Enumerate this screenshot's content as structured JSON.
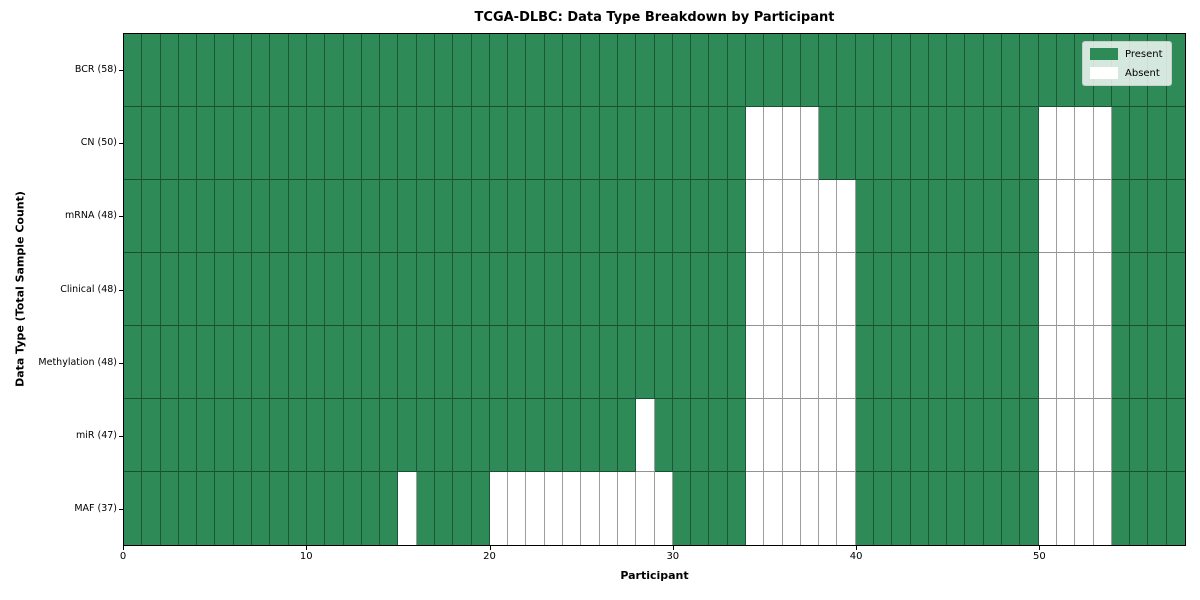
{
  "chart_data": {
    "type": "heatmap",
    "title": "TCGA-DLBC: Data Type Breakdown by Participant",
    "xlabel": "Participant",
    "ylabel": "Data Type (Total Sample Count)",
    "x_ticks": [
      0,
      10,
      20,
      30,
      40,
      50
    ],
    "x_range": [
      0,
      58
    ],
    "n_participants": 58,
    "grid": true,
    "legend_position": "upper-right",
    "legend": [
      {
        "label": "Present",
        "color": "#2e8b57"
      },
      {
        "label": "Absent",
        "color": "#ffffff"
      }
    ],
    "rows": [
      {
        "label": "BCR (58)",
        "data_type": "BCR",
        "total_samples": 58,
        "absent_participants": []
      },
      {
        "label": "CN (50)",
        "data_type": "CN",
        "total_samples": 50,
        "absent_participants": [
          34,
          35,
          36,
          37,
          50,
          51,
          52,
          53
        ]
      },
      {
        "label": "mRNA (48)",
        "data_type": "mRNA",
        "total_samples": 48,
        "absent_participants": [
          34,
          35,
          36,
          37,
          38,
          39,
          50,
          51,
          52,
          53
        ]
      },
      {
        "label": "Clinical (48)",
        "data_type": "Clinical",
        "total_samples": 48,
        "absent_participants": [
          34,
          35,
          36,
          37,
          38,
          39,
          50,
          51,
          52,
          53
        ]
      },
      {
        "label": "Methylation (48)",
        "data_type": "Methylation",
        "total_samples": 48,
        "absent_participants": [
          34,
          35,
          36,
          37,
          38,
          39,
          50,
          51,
          52,
          53
        ]
      },
      {
        "label": "miR (47)",
        "data_type": "miR",
        "total_samples": 47,
        "absent_participants": [
          28,
          34,
          35,
          36,
          37,
          38,
          39,
          50,
          51,
          52,
          53
        ]
      },
      {
        "label": "MAF (37)",
        "data_type": "MAF",
        "total_samples": 37,
        "absent_participants": [
          15,
          20,
          21,
          22,
          23,
          24,
          25,
          26,
          27,
          28,
          29,
          34,
          35,
          36,
          37,
          38,
          39,
          50,
          51,
          52,
          53
        ]
      }
    ],
    "colors": {
      "present": "#2e8b57",
      "absent": "#ffffff",
      "cell_border": "rgba(0,0,0,0.38)",
      "plot_border": "#000000",
      "legend_border": "#cccccc"
    }
  }
}
